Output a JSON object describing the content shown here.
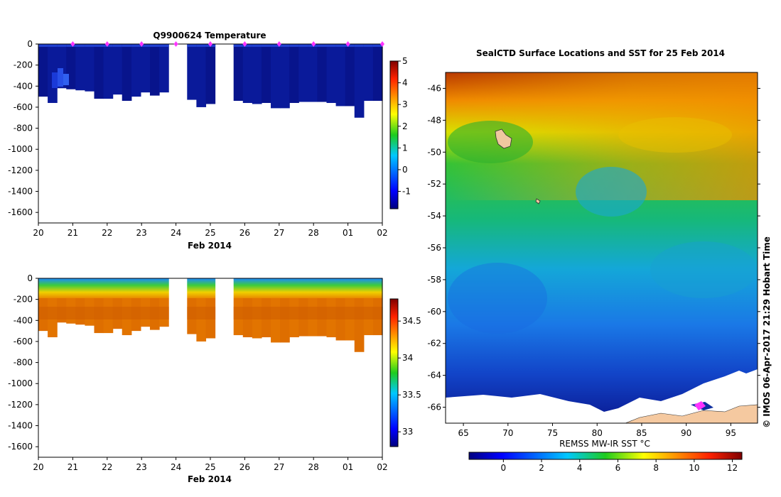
{
  "chart_data": [
    {
      "type": "heatmap",
      "title": "Q9900624  Temperature",
      "xlabel": "Feb 2014",
      "ylabel": "",
      "x_tick_labels": [
        "20",
        "21",
        "22",
        "23",
        "24",
        "25",
        "26",
        "27",
        "28",
        "01",
        "02"
      ],
      "y_ticks": [
        0,
        -200,
        -400,
        -600,
        -800,
        -1000,
        -1200,
        -1400,
        -1600
      ],
      "ylim": [
        -1700,
        0
      ],
      "colorbar": {
        "ticks": [
          5,
          4,
          3,
          2,
          1,
          0,
          -1
        ],
        "range": [
          -1.8,
          5
        ]
      },
      "profile_markers": [
        "21",
        "22",
        "23",
        "24",
        "25",
        "26",
        "27",
        "28",
        "01",
        "02"
      ],
      "profile_max_depth": [
        -500,
        -560,
        -420,
        -430,
        -440,
        -450,
        -520,
        -520,
        -480,
        -540,
        -500,
        -460,
        -490,
        -460,
        -530,
        -530,
        -530,
        -600,
        -570,
        -570,
        -530,
        -540,
        -560,
        -570,
        -560,
        -610,
        -610,
        -560,
        -550,
        -550,
        -550,
        -560,
        -590,
        -590,
        -700,
        -540,
        -540
      ],
      "gaps": [
        [
          "23.8",
          "24.3"
        ],
        [
          "24.7",
          "25.6"
        ]
      ]
    },
    {
      "type": "heatmap",
      "title": "",
      "xlabel": "Feb 2014",
      "ylabel": "",
      "x_tick_labels": [
        "20",
        "21",
        "22",
        "23",
        "24",
        "25",
        "26",
        "27",
        "28",
        "01",
        "02"
      ],
      "y_ticks": [
        0,
        -200,
        -400,
        -600,
        -800,
        -1000,
        -1200,
        -1400,
        -1600
      ],
      "ylim": [
        -1700,
        0
      ],
      "colorbar": {
        "ticks": [
          34.5,
          34,
          33.5,
          33
        ],
        "range": [
          32.8,
          34.8
        ]
      }
    },
    {
      "type": "heatmap",
      "title": "SealCTD Surface Locations and SST for 25 Feb 2014",
      "xlabel": "REMSS MW-IR SST °C",
      "x_ticks": [
        65,
        70,
        75,
        80,
        85,
        90,
        95
      ],
      "y_ticks": [
        -46,
        -48,
        -50,
        -52,
        -54,
        -56,
        -58,
        -60,
        -62,
        -64,
        -66
      ],
      "xlim": [
        63,
        98
      ],
      "ylim": [
        -67,
        -45
      ],
      "colorbar": {
        "ticks": [
          0,
          2,
          4,
          6,
          8,
          10,
          12
        ],
        "range": [
          -1.8,
          12.5
        ]
      }
    }
  ],
  "copyright": "© IMOS 06-Apr-2017 21:29 Hobart Time"
}
